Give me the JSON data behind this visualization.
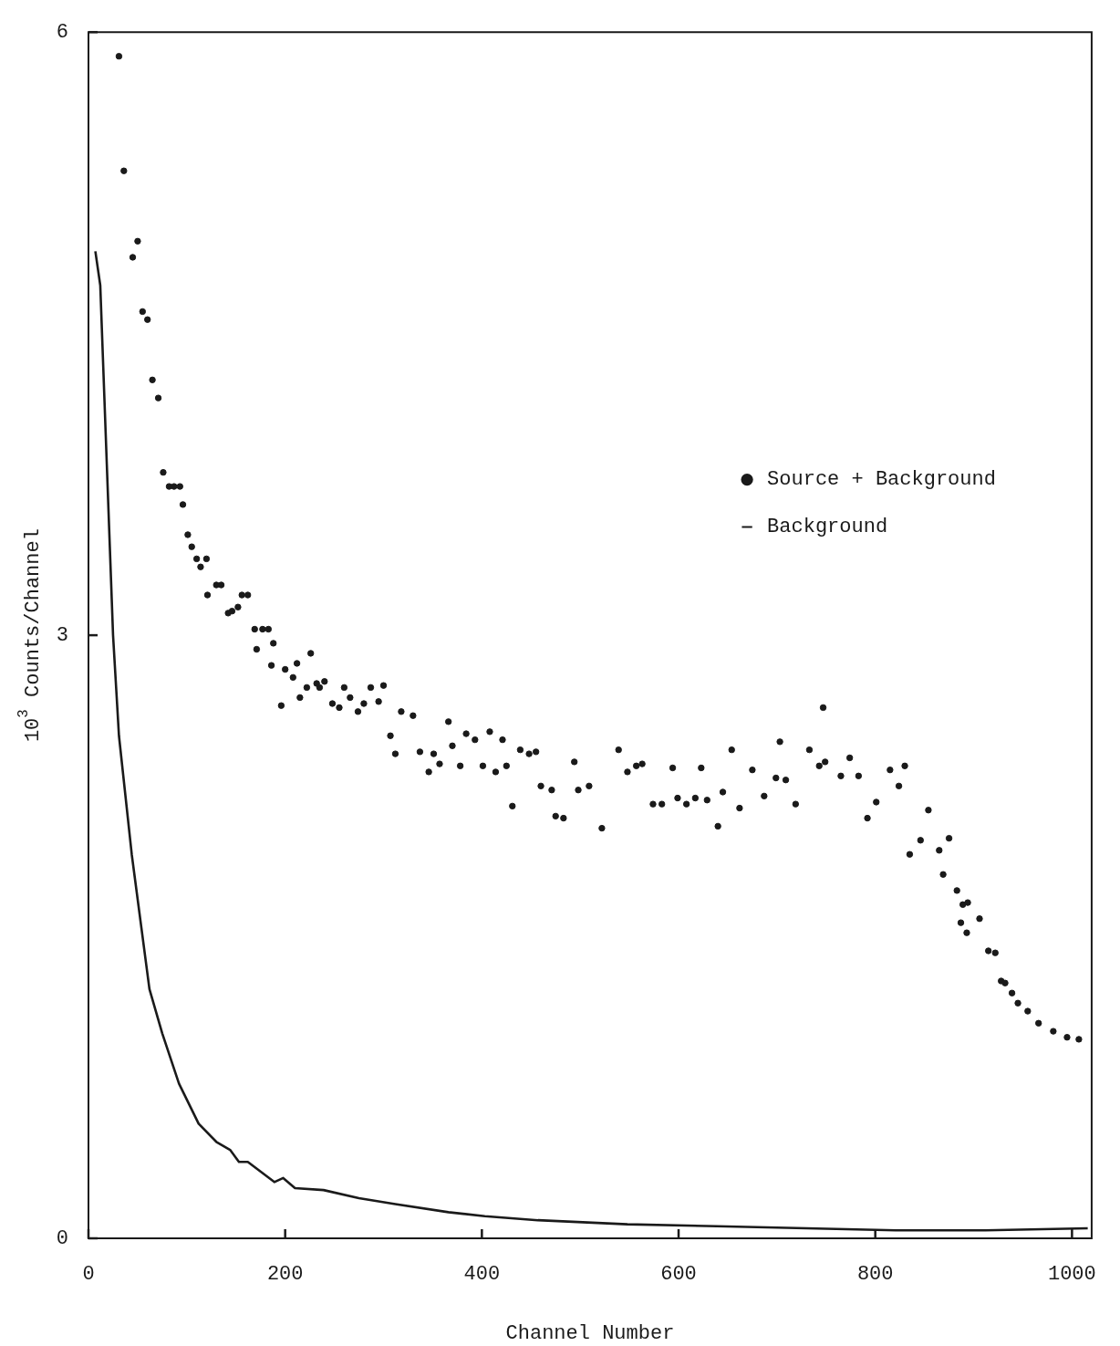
{
  "chart_data": {
    "type": "scatter",
    "xlabel": "Channel Number",
    "ylabel": "10$^{3}$ Counts/Channel",
    "xlim": [
      0,
      1020
    ],
    "ylim": [
      0,
      6
    ],
    "xticks": [
      0,
      200,
      400,
      600,
      800,
      1000
    ],
    "yticks": [
      0,
      3,
      6
    ],
    "grid": false,
    "legend": "right",
    "series": [
      {
        "name": "Source + Background",
        "marker": "circle",
        "color": "#1a1a1a",
        "x": [
          31,
          36,
          45,
          50,
          55,
          60,
          65,
          71,
          76,
          82,
          87,
          93,
          96,
          101,
          105,
          110,
          114,
          120,
          121,
          130,
          135,
          142,
          146,
          152,
          156,
          162,
          169,
          171,
          177,
          183,
          186,
          188,
          196,
          200,
          208,
          212,
          215,
          222,
          226,
          232,
          235,
          240,
          248,
          255,
          260,
          266,
          274,
          280,
          287,
          295,
          300,
          307,
          312,
          318,
          330,
          337,
          346,
          351,
          357,
          366,
          370,
          378,
          384,
          393,
          401,
          408,
          414,
          421,
          425,
          431,
          439,
          448,
          455,
          460,
          471,
          475,
          483,
          494,
          498,
          509,
          522,
          539,
          548,
          557,
          563,
          574,
          583,
          594,
          599,
          608,
          617,
          623,
          629,
          640,
          645,
          654,
          662,
          675,
          687,
          699,
          703,
          709,
          719,
          733,
          743,
          747,
          749,
          765,
          774,
          783,
          792,
          801,
          815,
          824,
          830,
          835,
          846,
          854,
          865,
          869,
          875,
          883,
          887,
          889,
          893,
          894,
          906,
          915,
          922,
          928,
          932,
          939,
          945,
          955,
          966,
          981,
          995,
          1007
        ],
        "values": [
          5.88,
          5.31,
          4.88,
          4.96,
          4.61,
          4.57,
          4.27,
          4.18,
          3.81,
          3.74,
          3.74,
          3.74,
          3.65,
          3.5,
          3.44,
          3.38,
          3.34,
          3.38,
          3.2,
          3.25,
          3.25,
          3.11,
          3.12,
          3.14,
          3.2,
          3.2,
          3.03,
          2.93,
          3.03,
          3.03,
          2.85,
          2.96,
          2.65,
          2.83,
          2.79,
          2.86,
          2.69,
          2.74,
          2.91,
          2.76,
          2.74,
          2.77,
          2.66,
          2.64,
          2.74,
          2.69,
          2.62,
          2.66,
          2.74,
          2.67,
          2.75,
          2.5,
          2.41,
          2.62,
          2.6,
          2.42,
          2.32,
          2.41,
          2.36,
          2.57,
          2.45,
          2.35,
          2.51,
          2.48,
          2.35,
          2.52,
          2.32,
          2.48,
          2.35,
          2.15,
          2.43,
          2.41,
          2.42,
          2.25,
          2.23,
          2.1,
          2.09,
          2.37,
          2.23,
          2.25,
          2.04,
          2.43,
          2.32,
          2.35,
          2.36,
          2.16,
          2.16,
          2.34,
          2.19,
          2.16,
          2.19,
          2.34,
          2.18,
          2.05,
          2.22,
          2.43,
          2.14,
          2.33,
          2.2,
          2.29,
          2.47,
          2.28,
          2.16,
          2.43,
          2.35,
          2.64,
          2.37,
          2.3,
          2.39,
          2.3,
          2.09,
          2.17,
          2.33,
          2.25,
          2.35,
          1.91,
          1.98,
          2.13,
          1.93,
          1.81,
          1.99,
          1.73,
          1.57,
          1.66,
          1.52,
          1.67,
          1.59,
          1.43,
          1.42,
          1.28,
          1.27,
          1.22,
          1.17,
          1.13,
          1.07,
          1.03,
          1.0,
          0.99
        ]
      },
      {
        "name": "Background",
        "type": "line",
        "marker": "none",
        "color": "#1a1a1a",
        "line_style": "solid",
        "x": [
          7,
          12,
          25,
          31,
          44,
          62,
          75,
          92,
          112,
          130,
          144,
          153,
          162,
          189,
          198,
          210,
          239,
          275,
          312,
          366,
          403,
          457,
          548,
          639,
          730,
          821,
          912,
          1016
        ],
        "values": [
          4.91,
          4.74,
          3.0,
          2.5,
          1.91,
          1.24,
          1.02,
          0.77,
          0.57,
          0.48,
          0.44,
          0.38,
          0.38,
          0.28,
          0.3,
          0.25,
          0.24,
          0.2,
          0.17,
          0.13,
          0.11,
          0.09,
          0.07,
          0.06,
          0.05,
          0.04,
          0.04,
          0.05
        ]
      }
    ]
  }
}
